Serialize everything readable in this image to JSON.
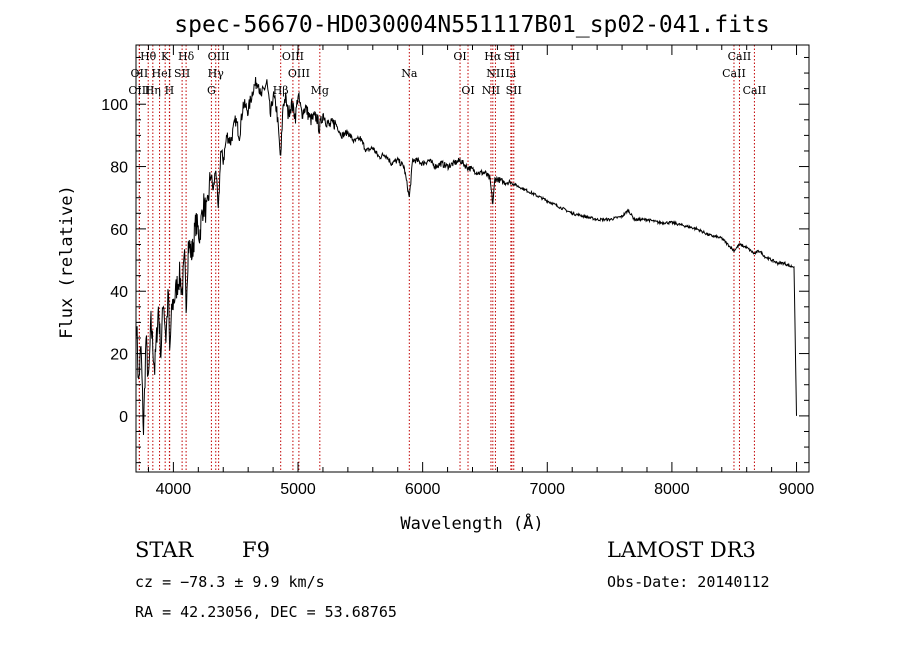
{
  "chart_data": {
    "type": "line",
    "title": "spec-56670-HD030004N551117B01_sp02-041.fits",
    "xlabel": "Wavelength (Å)",
    "ylabel": "Flux (relative)",
    "xlim": [
      3700,
      9100
    ],
    "ylim": [
      -18,
      119
    ],
    "x_ticks": [
      4000,
      5000,
      6000,
      7000,
      8000,
      9000
    ],
    "y_ticks": [
      0,
      20,
      40,
      60,
      80,
      100
    ],
    "series": [
      {
        "name": "flux",
        "x": [
          3705,
          3720,
          3740,
          3760,
          3780,
          3800,
          3820,
          3850,
          3880,
          3900,
          3920,
          3940,
          3960,
          3970,
          3990,
          4010,
          4030,
          4050,
          4070,
          4090,
          4102,
          4120,
          4150,
          4180,
          4210,
          4240,
          4270,
          4300,
          4320,
          4340,
          4360,
          4380,
          4400,
          4430,
          4460,
          4500,
          4530,
          4560,
          4600,
          4640,
          4680,
          4700,
          4720,
          4750,
          4780,
          4800,
          4830,
          4861,
          4880,
          4900,
          4920,
          4950,
          4980,
          5000,
          5030,
          5060,
          5100,
          5150,
          5172,
          5200,
          5250,
          5300,
          5350,
          5400,
          5450,
          5500,
          5550,
          5600,
          5650,
          5700,
          5750,
          5800,
          5850,
          5893,
          5920,
          5950,
          6000,
          6050,
          6100,
          6150,
          6200,
          6250,
          6300,
          6350,
          6400,
          6450,
          6500,
          6540,
          6563,
          6580,
          6600,
          6650,
          6700,
          6750,
          6800,
          6850,
          6900,
          6950,
          7000,
          7100,
          7200,
          7300,
          7400,
          7500,
          7600,
          7650,
          7700,
          7800,
          7900,
          8000,
          8100,
          8200,
          8300,
          8400,
          8498,
          8542,
          8600,
          8662,
          8700,
          8750,
          8800,
          8850,
          8900,
          8950,
          8980,
          9000
        ],
        "y": [
          30,
          10,
          22,
          -5,
          25,
          10,
          30,
          15,
          35,
          20,
          38,
          25,
          40,
          20,
          35,
          38,
          42,
          45,
          40,
          50,
          35,
          55,
          52,
          62,
          58,
          68,
          65,
          78,
          72,
          80,
          65,
          85,
          82,
          90,
          88,
          95,
          90,
          100,
          98,
          105,
          108,
          102,
          104,
          107,
          96,
          103,
          98,
          82,
          100,
          102,
          97,
          100,
          96,
          103,
          97,
          99,
          95,
          96,
          92,
          97,
          93,
          94,
          90,
          91,
          88,
          89,
          85,
          86,
          83,
          84,
          81,
          82,
          80,
          70,
          82,
          82,
          81,
          82,
          80,
          81,
          80,
          81,
          82,
          80,
          79,
          78,
          78,
          76,
          68,
          76,
          76,
          75,
          75,
          74,
          73,
          72,
          71,
          70,
          69,
          67,
          65,
          64,
          63,
          63,
          64,
          66,
          63,
          63,
          62,
          62,
          61,
          60,
          58,
          57,
          53,
          55,
          54,
          52,
          53,
          51,
          50,
          49,
          49,
          48,
          48,
          0
        ]
      }
    ],
    "spectral_lines": [
      {
        "label": "Hθ",
        "x": 3798,
        "row": 0
      },
      {
        "label": "K",
        "x": 3934,
        "row": 0
      },
      {
        "label": "Hδ",
        "x": 4102,
        "row": 0
      },
      {
        "label": "OIII",
        "x": 4363,
        "row": 0
      },
      {
        "label": "OIII",
        "x": 4959,
        "row": 0
      },
      {
        "label": "OI",
        "x": 6300,
        "row": 0
      },
      {
        "label": "Hα",
        "x": 6563,
        "row": 0
      },
      {
        "label": "SII",
        "x": 6716,
        "row": 0
      },
      {
        "label": "CaII",
        "x": 8542,
        "row": 0
      },
      {
        "label": "OII",
        "x": 3727,
        "row": 1
      },
      {
        "label": "He",
        "x": 3889,
        "row": 1
      },
      {
        "label": "I",
        "x": 3970,
        "row": 1
      },
      {
        "label": "SII",
        "x": 4070,
        "row": 1
      },
      {
        "label": "Hγ",
        "x": 4340,
        "row": 1
      },
      {
        "label": "OIII",
        "x": 5007,
        "row": 1
      },
      {
        "label": "Na",
        "x": 5893,
        "row": 1
      },
      {
        "label": "NII",
        "x": 6584,
        "row": 1
      },
      {
        "label": "Li",
        "x": 6708,
        "row": 1
      },
      {
        "label": "CaII",
        "x": 8498,
        "row": 1
      },
      {
        "label": "OIII",
        "x": 3727,
        "row": 2
      },
      {
        "label": "Hη",
        "x": 3835,
        "row": 2
      },
      {
        "label": "H",
        "x": 3968,
        "row": 2
      },
      {
        "label": "G",
        "x": 4305,
        "row": 2
      },
      {
        "label": "Hβ",
        "x": 4861,
        "row": 2
      },
      {
        "label": "Mg",
        "x": 5175,
        "row": 2
      },
      {
        "label": "OI",
        "x": 6364,
        "row": 2
      },
      {
        "label": "NII",
        "x": 6548,
        "row": 2
      },
      {
        "label": "SII",
        "x": 6731,
        "row": 2
      },
      {
        "label": "CaII",
        "x": 8662,
        "row": 2
      }
    ],
    "annotations": {
      "class_label": "STAR",
      "subclass": "F9",
      "survey": "LAMOST DR3",
      "cz": "cz = −78.3 ± 9.9 km/s",
      "obs_date": "Obs-Date: 20140112",
      "coords": "RA =  42.23056, DEC =  53.68765"
    }
  },
  "colors": {
    "line": "#000000",
    "marker": "#c00000",
    "background": "#ffffff"
  }
}
